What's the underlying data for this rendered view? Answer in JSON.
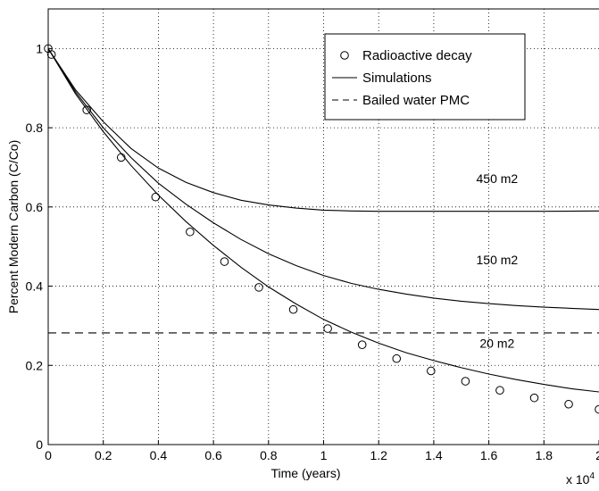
{
  "chart_data": {
    "type": "line",
    "title": "",
    "xlabel": "Time (years)",
    "ylabel": "Percent Modern Carbon (C/Co)",
    "x_multiplier": "x 10",
    "x_multiplier_exp": "4",
    "xlim": [
      0,
      2
    ],
    "ylim": [
      0,
      1.1
    ],
    "grid": true,
    "x_ticks": [
      {
        "v": 0,
        "label": "0"
      },
      {
        "v": 0.2,
        "label": "0.2"
      },
      {
        "v": 0.4,
        "label": "0.4"
      },
      {
        "v": 0.6,
        "label": "0.6"
      },
      {
        "v": 0.8,
        "label": "0.8"
      },
      {
        "v": 1,
        "label": "1"
      },
      {
        "v": 1.2,
        "label": "1.2"
      },
      {
        "v": 1.4,
        "label": "1.4"
      },
      {
        "v": 1.6,
        "label": "1.6"
      },
      {
        "v": 1.8,
        "label": "1.8"
      },
      {
        "v": 2,
        "label": "2"
      }
    ],
    "y_ticks": [
      {
        "v": 0,
        "label": "0"
      },
      {
        "v": 0.2,
        "label": "0.2"
      },
      {
        "v": 0.4,
        "label": "0.4"
      },
      {
        "v": 0.6,
        "label": "0.6"
      },
      {
        "v": 0.8,
        "label": "0.8"
      },
      {
        "v": 1,
        "label": "1"
      }
    ],
    "legend": {
      "position": "top-right",
      "entries": [
        {
          "label": "Radioactive decay",
          "style": "circle"
        },
        {
          "label": "Simulations",
          "style": "solid"
        },
        {
          "label": "Bailed water PMC",
          "style": "dashed"
        }
      ]
    },
    "series": [
      {
        "name": "Radioactive decay",
        "style": "circle",
        "x": [
          0,
          0.012,
          0.14,
          0.265,
          0.39,
          0.515,
          0.64,
          0.765,
          0.89,
          1.015,
          1.14,
          1.265,
          1.39,
          1.515,
          1.64,
          1.765,
          1.89,
          2.0
        ],
        "y": [
          1.0,
          0.985,
          0.845,
          0.725,
          0.625,
          0.537,
          0.462,
          0.397,
          0.341,
          0.293,
          0.252,
          0.217,
          0.186,
          0.16,
          0.137,
          0.118,
          0.102,
          0.089
        ]
      },
      {
        "name": "Simulations",
        "label": "450 m2",
        "style": "solid",
        "x": [
          0,
          0.1,
          0.2,
          0.3,
          0.4,
          0.5,
          0.6,
          0.7,
          0.8,
          0.9,
          1.0,
          1.1,
          1.2,
          1.4,
          1.6,
          1.8,
          2.0
        ],
        "y": [
          1.0,
          0.895,
          0.815,
          0.748,
          0.698,
          0.662,
          0.636,
          0.617,
          0.605,
          0.597,
          0.592,
          0.59,
          0.589,
          0.589,
          0.589,
          0.589,
          0.59
        ]
      },
      {
        "name": "Simulations",
        "label": "150 m2",
        "style": "solid",
        "x": [
          0,
          0.1,
          0.2,
          0.3,
          0.4,
          0.5,
          0.6,
          0.7,
          0.8,
          0.9,
          1.0,
          1.1,
          1.2,
          1.3,
          1.4,
          1.5,
          1.6,
          1.7,
          1.8,
          1.9,
          2.0
        ],
        "y": [
          1.0,
          0.89,
          0.8,
          0.725,
          0.66,
          0.607,
          0.56,
          0.518,
          0.482,
          0.452,
          0.427,
          0.407,
          0.392,
          0.38,
          0.37,
          0.362,
          0.356,
          0.351,
          0.347,
          0.344,
          0.341
        ]
      },
      {
        "name": "Simulations",
        "label": "20 m2",
        "style": "solid",
        "x": [
          0,
          0.1,
          0.2,
          0.3,
          0.4,
          0.5,
          0.6,
          0.7,
          0.8,
          0.9,
          1.0,
          1.1,
          1.2,
          1.3,
          1.4,
          1.5,
          1.6,
          1.7,
          1.8,
          1.9,
          2.0
        ],
        "y": [
          1.0,
          0.885,
          0.79,
          0.705,
          0.63,
          0.563,
          0.503,
          0.448,
          0.398,
          0.355,
          0.316,
          0.284,
          0.256,
          0.232,
          0.212,
          0.194,
          0.178,
          0.164,
          0.152,
          0.141,
          0.133
        ]
      },
      {
        "name": "Bailed water PMC",
        "style": "dashed",
        "x": [
          0,
          2
        ],
        "y": [
          0.282,
          0.282
        ]
      }
    ],
    "annotations": [
      {
        "text": "450 m2",
        "x": 1.63,
        "y": 0.66
      },
      {
        "text": "150 m2",
        "x": 1.63,
        "y": 0.455
      },
      {
        "text": "20 m2",
        "x": 1.63,
        "y": 0.245
      }
    ]
  }
}
